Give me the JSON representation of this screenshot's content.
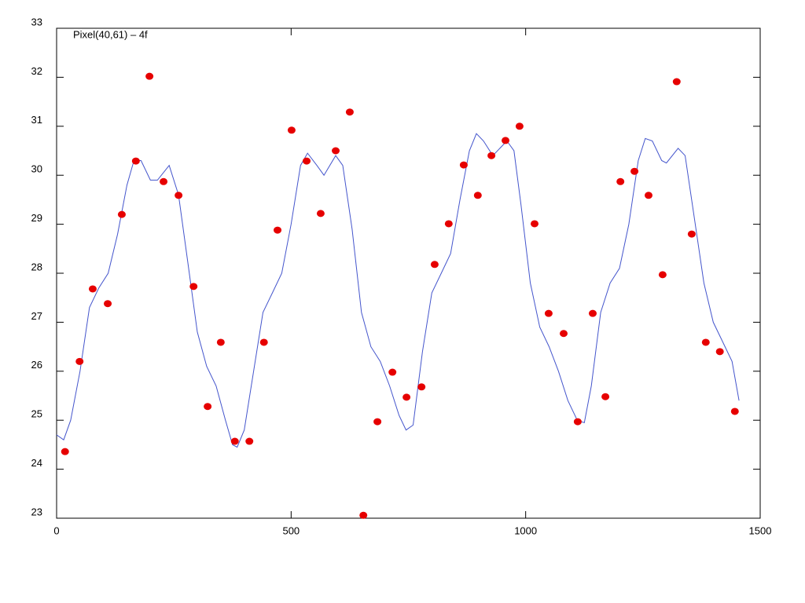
{
  "chart_data": {
    "type": "scatter",
    "title": "Pixel(40,61) – 4f",
    "xlim": [
      0,
      1500
    ],
    "xticks": [
      0,
      500,
      1000,
      1500
    ],
    "ylim": [
      23,
      33
    ],
    "yticks": [
      23,
      24,
      25,
      26,
      27,
      28,
      29,
      30,
      31,
      32,
      33
    ],
    "points": {
      "color": "#e60000",
      "x": [
        18,
        49,
        77,
        109,
        139,
        169,
        198,
        228,
        260,
        292,
        322,
        350,
        380,
        411,
        442,
        471,
        501,
        533,
        563,
        595,
        625,
        654,
        684,
        716,
        746,
        778,
        806,
        836,
        868,
        898,
        927,
        957,
        987,
        1019,
        1049,
        1081,
        1111,
        1143,
        1170,
        1202,
        1232,
        1262,
        1292,
        1322,
        1354,
        1384,
        1414,
        1446
      ],
      "y": [
        24.36,
        26.2,
        27.68,
        27.38,
        29.2,
        30.29,
        32.02,
        29.87,
        29.59,
        27.73,
        25.28,
        26.59,
        24.57,
        24.57,
        26.59,
        28.88,
        30.92,
        30.29,
        29.22,
        30.5,
        31.29,
        23.06,
        24.97,
        25.98,
        25.47,
        25.68,
        28.18,
        29.01,
        30.21,
        29.59,
        30.4,
        30.71,
        31.0,
        29.01,
        27.18,
        26.77,
        24.97,
        27.18,
        25.48,
        29.87,
        30.08,
        29.59,
        27.97,
        31.91,
        28.8,
        26.59,
        26.4,
        25.18
      ]
    },
    "curve": {
      "color": "#4455cc",
      "x": [
        0,
        15,
        30,
        50,
        70,
        90,
        110,
        130,
        150,
        165,
        180,
        200,
        215,
        240,
        260,
        280,
        300,
        320,
        340,
        360,
        375,
        385,
        400,
        420,
        440,
        460,
        480,
        500,
        520,
        535,
        555,
        570,
        595,
        610,
        630,
        650,
        670,
        690,
        710,
        730,
        745,
        760,
        780,
        800,
        820,
        840,
        860,
        880,
        895,
        910,
        930,
        960,
        975,
        990,
        1010,
        1030,
        1050,
        1070,
        1090,
        1110,
        1125,
        1140,
        1160,
        1180,
        1200,
        1220,
        1240,
        1255,
        1270,
        1290,
        1300,
        1325,
        1340,
        1360,
        1380,
        1400,
        1420,
        1440,
        1455
      ],
      "y": [
        24.7,
        24.6,
        25.0,
        26.0,
        27.3,
        27.7,
        28.0,
        28.8,
        29.8,
        30.3,
        30.3,
        29.9,
        29.9,
        30.2,
        29.6,
        28.2,
        26.8,
        26.1,
        25.7,
        25.0,
        24.5,
        24.45,
        24.8,
        26.0,
        27.2,
        27.6,
        28.0,
        29.0,
        30.2,
        30.45,
        30.2,
        30.0,
        30.4,
        30.2,
        28.9,
        27.2,
        26.5,
        26.2,
        25.7,
        25.1,
        24.8,
        24.9,
        26.4,
        27.6,
        28.0,
        28.4,
        29.5,
        30.5,
        30.85,
        30.7,
        30.4,
        30.7,
        30.5,
        29.4,
        27.8,
        26.9,
        26.5,
        26.0,
        25.4,
        25.0,
        24.95,
        25.7,
        27.2,
        27.8,
        28.1,
        29.0,
        30.3,
        30.75,
        30.7,
        30.3,
        30.25,
        30.55,
        30.4,
        29.1,
        27.8,
        27.0,
        26.6,
        26.2,
        25.4
      ]
    }
  }
}
